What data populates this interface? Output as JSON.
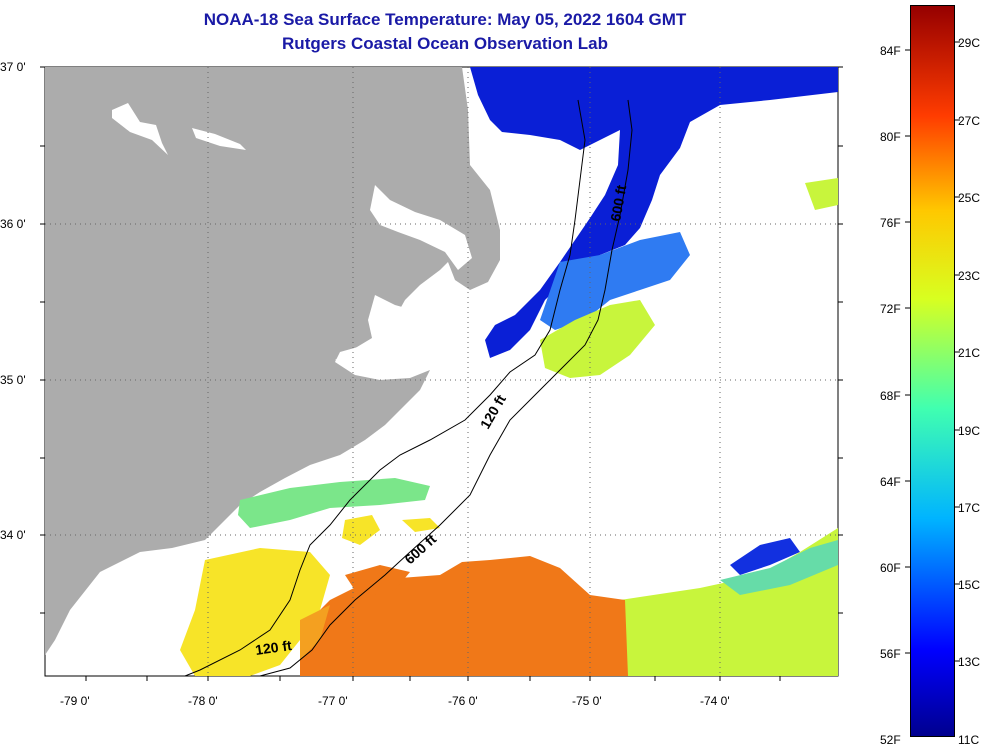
{
  "title_line1": "NOAA-18 Sea Surface Temperature:  May 05, 2022 1604 GMT",
  "title_line2": "Rutgers Coastal Ocean Observation Lab",
  "lat_labels": [
    "37 0'",
    "36 0'",
    "35 0'",
    "34 0'"
  ],
  "lon_labels": [
    "-79 0'",
    "-78 0'",
    "-77 0'",
    "-76 0'",
    "-75 0'",
    "-74 0'"
  ],
  "contour_labels": {
    "c600_north": "600 ft",
    "c120_north": "120 ft",
    "c600_south": "600 ft",
    "c120_south": "120 ft"
  },
  "colorbar_f": [
    "84F",
    "80F",
    "76F",
    "72F",
    "68F",
    "64F",
    "60F",
    "56F",
    "52F"
  ],
  "colorbar_c": [
    "29C",
    "27C",
    "25C",
    "23C",
    "21C",
    "19C",
    "17C",
    "15C",
    "13C",
    "11C"
  ],
  "colors": {
    "land": "#acacac",
    "cold": "#0a1fd6",
    "cool": "#2f7bf2",
    "mid": "#c8f53c",
    "warm": "#f7e428",
    "hot": "#f07818",
    "title": "#1a1aa6"
  }
}
